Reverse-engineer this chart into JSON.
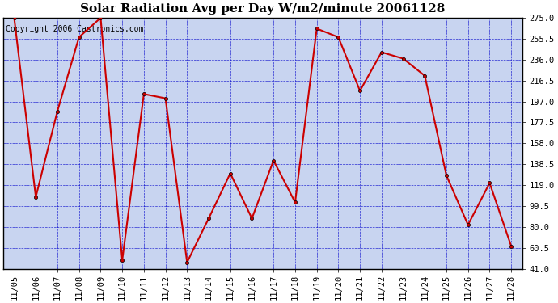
{
  "title": "Solar Radiation Avg per Day W/m2/minute 20061128",
  "copyright": "Copyright 2006 Castronics.com",
  "dates": [
    "11/05",
    "11/06",
    "11/07",
    "11/08",
    "11/09",
    "11/10",
    "11/11",
    "11/12",
    "11/13",
    "11/14",
    "11/15",
    "11/16",
    "11/17",
    "11/18",
    "11/19",
    "11/20",
    "11/21",
    "11/22",
    "11/23",
    "11/24",
    "11/25",
    "11/26",
    "11/27",
    "11/28"
  ],
  "values": [
    275.0,
    108.0,
    188.0,
    257.0,
    275.0,
    49.0,
    204.0,
    200.0,
    47.0,
    88.0,
    130.0,
    88.0,
    142.0,
    103.0,
    265.0,
    257.0,
    207.0,
    243.0,
    237.0,
    221.0,
    128.0,
    82.0,
    121.0,
    62.0
  ],
  "ylim": [
    41.0,
    275.0
  ],
  "yticks": [
    41.0,
    60.5,
    80.0,
    99.5,
    119.0,
    138.5,
    158.0,
    177.5,
    197.0,
    216.5,
    236.0,
    255.5,
    275.0
  ],
  "line_color": "#cc0000",
  "marker": "o",
  "marker_size": 3,
  "bg_color": "#c8d4f0",
  "grid_color": "#0000cc",
  "title_fontsize": 11,
  "tick_fontsize": 7.5,
  "copyright_fontsize": 7
}
